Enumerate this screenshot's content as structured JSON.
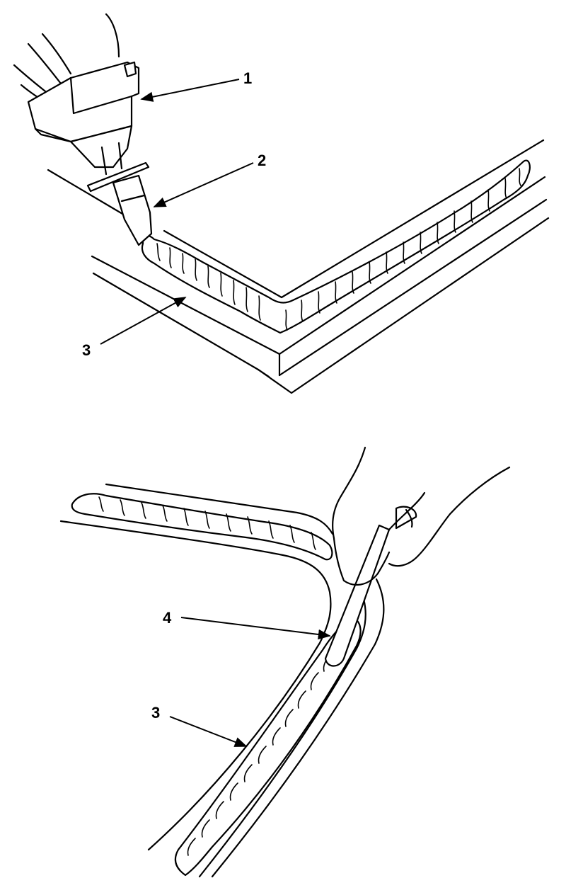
{
  "callouts": {
    "c1": "1",
    "c2": "2",
    "c3_top": "3",
    "c4": "4",
    "c3_bottom": "3"
  },
  "colors": {
    "ink": "#000000",
    "paper": "#ffffff"
  }
}
